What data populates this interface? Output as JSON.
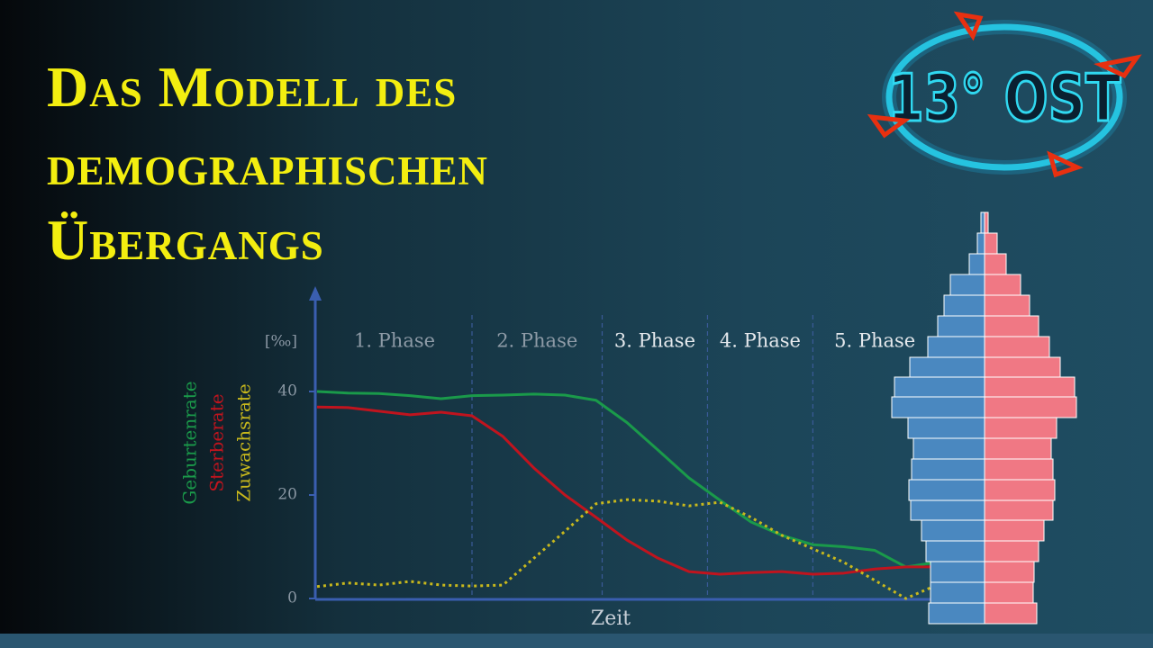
{
  "header": {
    "lines": [
      "Das Modell des",
      "demographischen",
      "Übergangs"
    ]
  },
  "logo": {
    "text": "13° OST"
  },
  "chart_data": {
    "type": "line",
    "ylabel": "[‰]",
    "xlabel": "Zeit",
    "x": [
      0,
      5,
      10,
      15,
      20,
      25,
      30,
      35,
      40,
      45,
      50,
      55,
      60,
      65,
      70,
      75,
      80,
      85,
      90,
      95,
      100
    ],
    "xlim": [
      0,
      100
    ],
    "ylim": [
      0,
      60
    ],
    "yticks": [
      0,
      20,
      40
    ],
    "phases": [
      "1. Phase",
      "2. Phase",
      "3. Phase",
      "4. Phase",
      "5. Phase"
    ],
    "phase_bounds": [
      25,
      46,
      63,
      80
    ],
    "series": [
      {
        "name": "Geburtenrate",
        "color": "#1a9a4a",
        "values": [
          40,
          39.7,
          39.6,
          39.2,
          38.6,
          39.2,
          39.3,
          39.5,
          39.3,
          38.3,
          34,
          28.7,
          23.3,
          19,
          14.8,
          12.2,
          10.4,
          10,
          9.3,
          6.1,
          7
        ]
      },
      {
        "name": "Sterberate",
        "color": "#c0141e",
        "values": [
          37,
          36.9,
          36.2,
          35.5,
          36,
          35.3,
          31.3,
          25.2,
          20,
          15.7,
          11.3,
          7.8,
          5.2,
          4.7,
          5,
          5.2,
          4.7,
          4.9,
          5.7,
          6.1,
          6.1
        ]
      },
      {
        "name": "Zuwachsrate",
        "color": "#c8b81c",
        "dashed": true,
        "values": [
          2.3,
          3,
          2.6,
          3.3,
          2.6,
          2.4,
          2.6,
          7.8,
          13,
          18.3,
          19.1,
          18.8,
          17.9,
          18.6,
          15.7,
          12.2,
          9.6,
          7,
          3.5,
          0,
          2.6
        ]
      }
    ]
  }
}
